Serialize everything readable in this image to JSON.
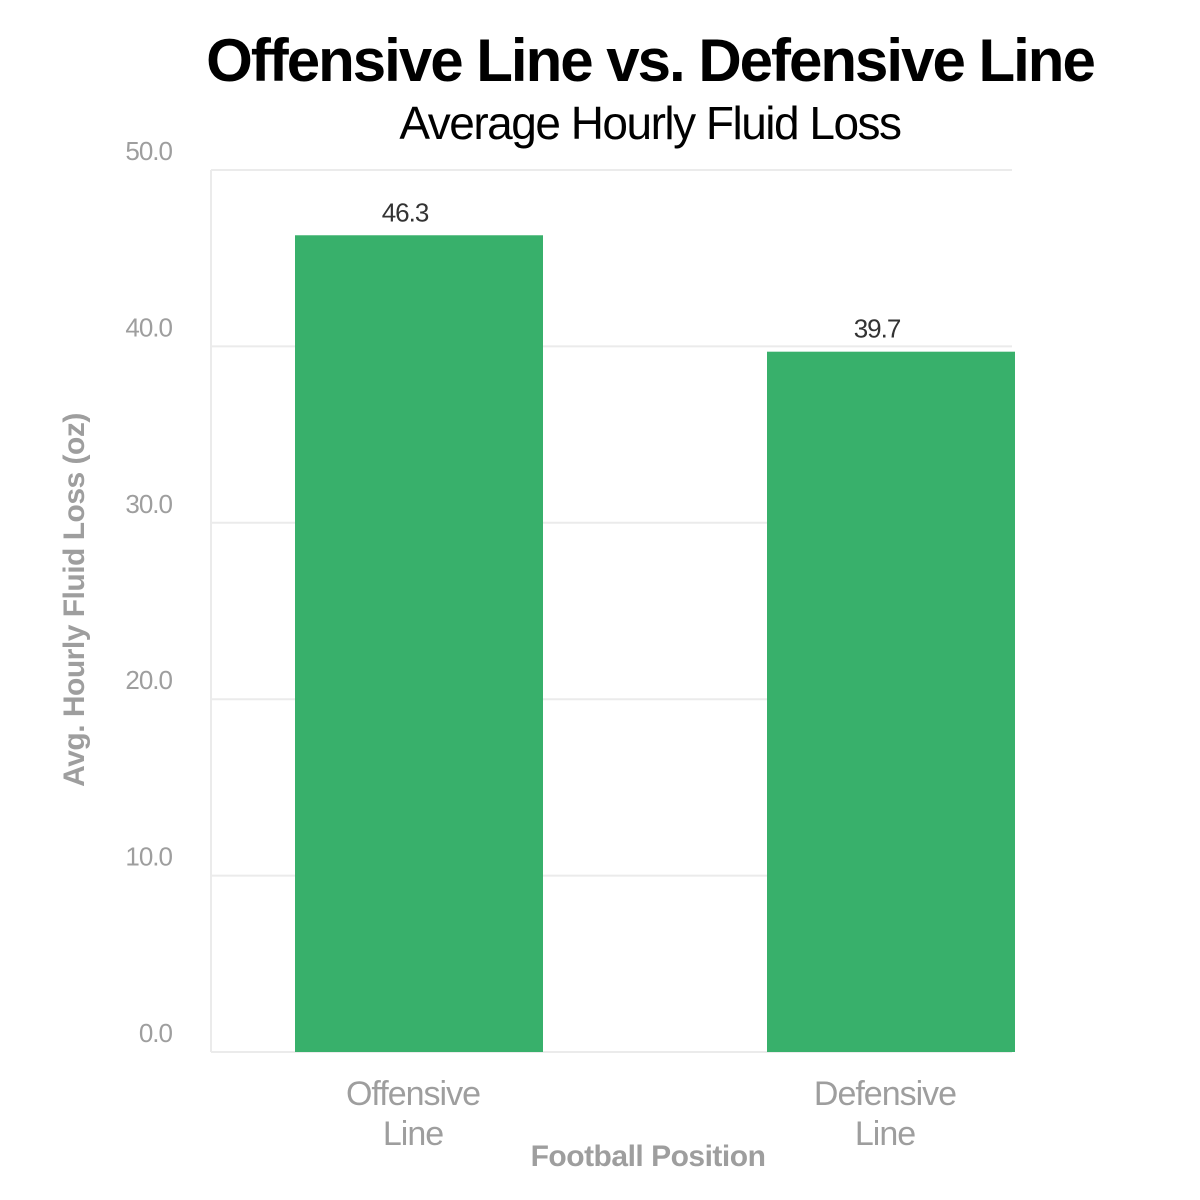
{
  "chart_data": {
    "type": "bar",
    "title": "Offensive Line vs. Defensive Line",
    "subtitle": "Average Hourly Fluid Loss",
    "categories": [
      [
        "Offensive",
        "Line"
      ],
      [
        "Defensive",
        "Line"
      ]
    ],
    "values": [
      46.3,
      39.7
    ],
    "value_labels": [
      "46.3",
      "39.7"
    ],
    "xlabel": "Football Position",
    "ylabel": "Avg. Hourly Fluid Loss (oz)",
    "ylim": [
      0,
      50
    ],
    "yticks": [
      "0.0",
      "10.0",
      "20.0",
      "30.0",
      "40.0",
      "50.0"
    ],
    "grid": true,
    "colors": {
      "bar": "#38b06b",
      "grid": "#ebebeb",
      "axis_text": "#9e9e9e"
    }
  }
}
